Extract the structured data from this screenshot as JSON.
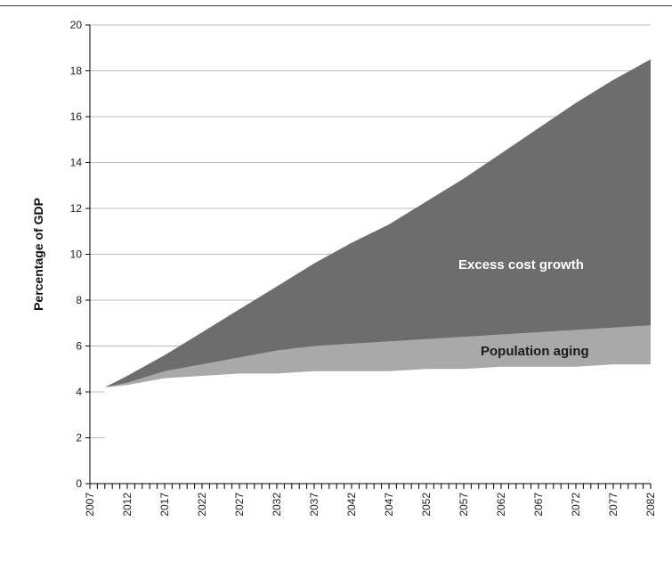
{
  "chart_data": {
    "type": "area",
    "stacked": true,
    "xlabel": "",
    "ylabel": "Percentage of GDP",
    "ylim": [
      0,
      20
    ],
    "xlim": [
      2007,
      2082
    ],
    "y_ticks": [
      0,
      2,
      4,
      6,
      8,
      10,
      12,
      14,
      16,
      18,
      20
    ],
    "x_ticks": [
      2007,
      2012,
      2017,
      2022,
      2027,
      2032,
      2037,
      2042,
      2047,
      2052,
      2057,
      2062,
      2067,
      2072,
      2077,
      2082
    ],
    "grid": "horizontal",
    "x": [
      2009,
      2012,
      2017,
      2022,
      2027,
      2032,
      2037,
      2042,
      2047,
      2052,
      2057,
      2062,
      2067,
      2072,
      2077,
      2082
    ],
    "series": [
      {
        "name": "",
        "values": [
          4.2,
          4.3,
          4.6,
          4.7,
          4.8,
          4.8,
          4.9,
          4.9,
          4.9,
          5.0,
          5.0,
          5.1,
          5.1,
          5.1,
          5.2,
          5.2
        ]
      },
      {
        "name": "Population aging",
        "values": [
          0.0,
          0.1,
          0.3,
          0.5,
          0.7,
          1.0,
          1.1,
          1.2,
          1.3,
          1.3,
          1.4,
          1.4,
          1.5,
          1.6,
          1.6,
          1.7
        ]
      },
      {
        "name": "Excess cost growth",
        "values": [
          0.0,
          0.3,
          0.7,
          1.4,
          2.1,
          2.8,
          3.6,
          4.4,
          5.1,
          6.0,
          6.9,
          7.9,
          8.9,
          9.9,
          10.8,
          11.6
        ]
      }
    ],
    "annotations": [
      {
        "text": "Excess cost growth",
        "series": "Excess cost growth"
      },
      {
        "text": "Population aging",
        "series": "Population aging"
      }
    ],
    "colors": {
      "base": "#ffffff",
      "population_aging": "#a9a9a9",
      "excess_cost_growth": "#6d6d6e",
      "excess_label": "#ffffff",
      "aging_label": "#1a1a1a",
      "gridline": "#bdbdbd",
      "axis": "#000000"
    }
  }
}
